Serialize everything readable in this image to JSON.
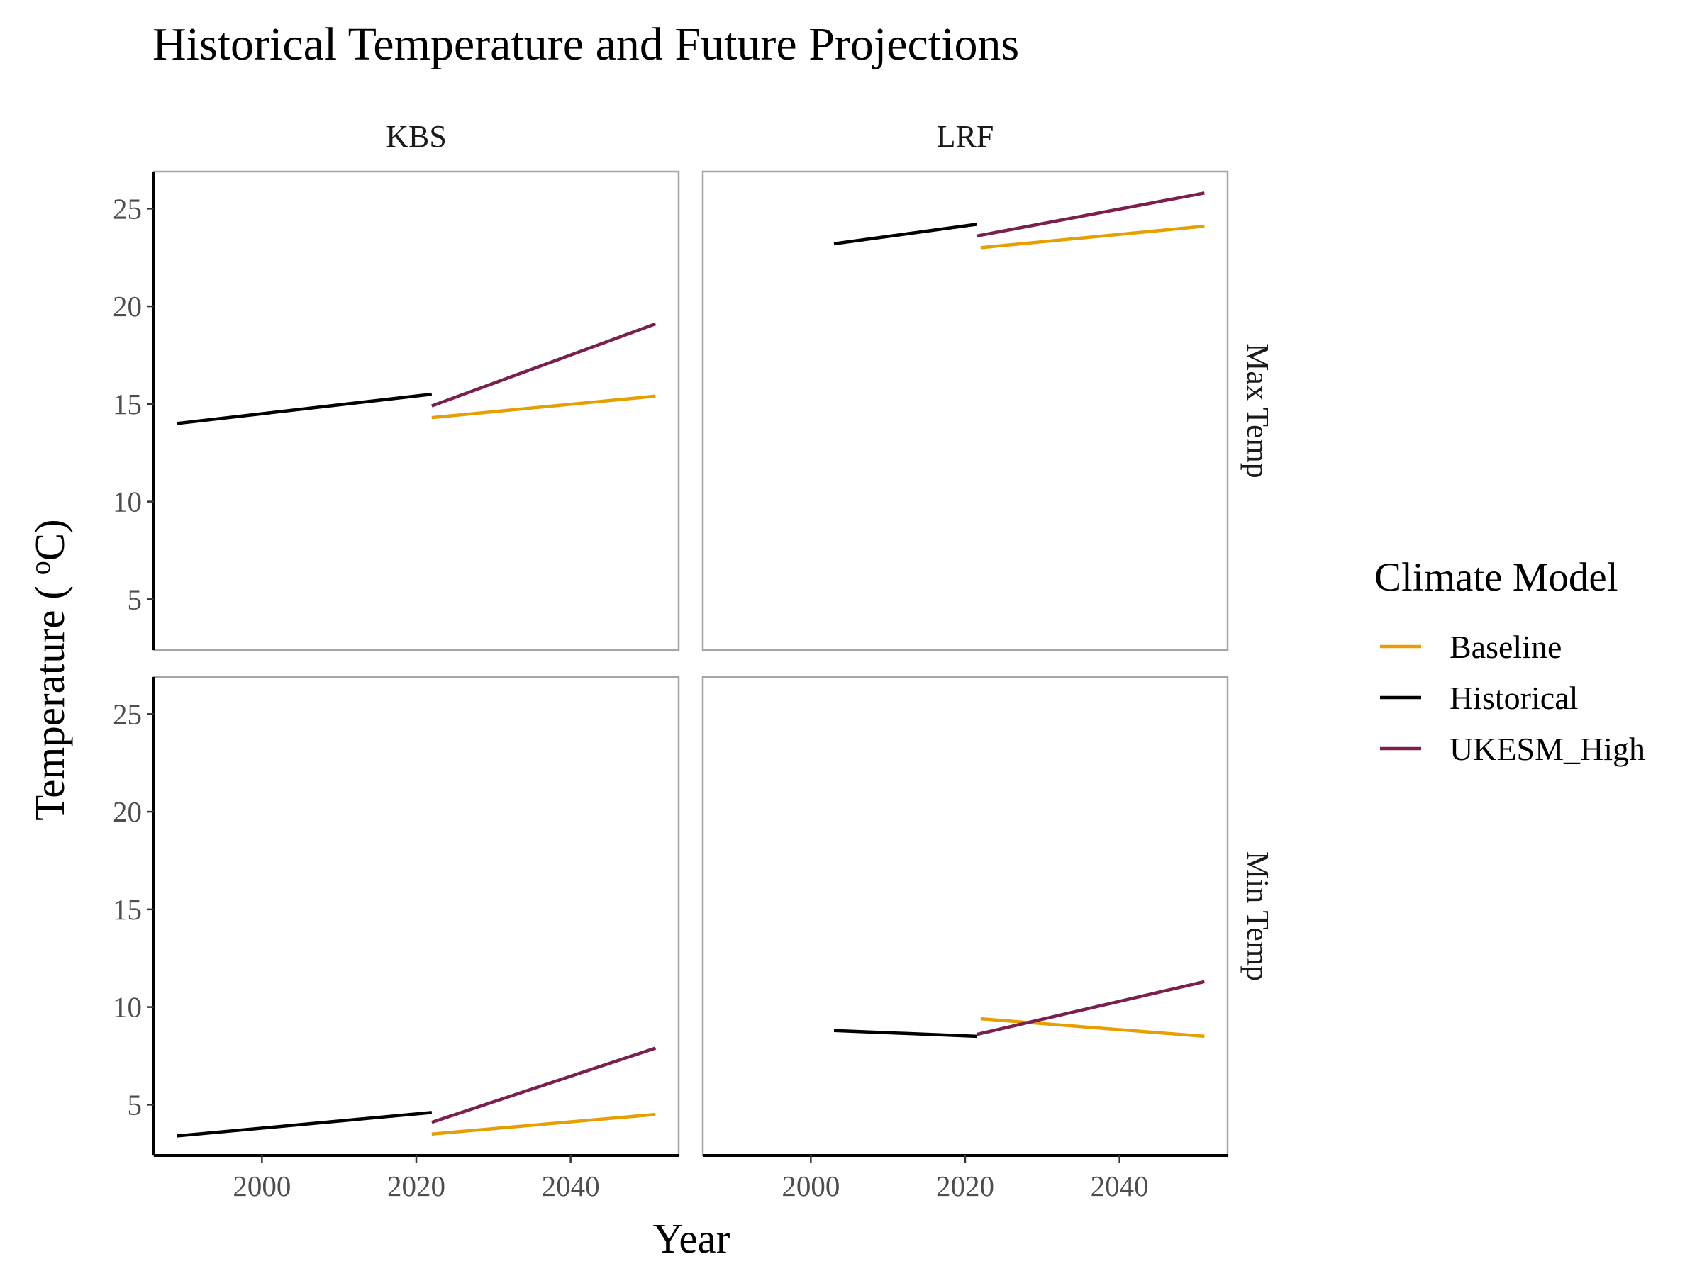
{
  "chart_data": {
    "type": "line",
    "title": "Historical Temperature and Future Projections",
    "xlabel": "Year",
    "ylabel": "Temperature ( °C)",
    "ylabel_parts": {
      "before": "Temperature ( ",
      "superscript": "o",
      "after": "C)"
    },
    "xlim": [
      1986,
      2054
    ],
    "ylim": [
      2.4,
      26.9
    ],
    "x_ticks": [
      2000,
      2020,
      2040
    ],
    "y_ticks": [
      5,
      10,
      15,
      20,
      25
    ],
    "facet_columns": [
      "KBS",
      "LRF"
    ],
    "facet_rows": [
      "Max Temp",
      "Min Temp"
    ],
    "legend": {
      "title": "Climate Model",
      "position": "right",
      "entries": [
        {
          "name": "Baseline",
          "color": "#E69F00"
        },
        {
          "name": "Historical",
          "color": "#000000"
        },
        {
          "name": "UKESM_High",
          "color": "#7B1F4E"
        }
      ]
    },
    "panels": [
      {
        "column": "KBS",
        "row": "Max Temp",
        "series": [
          {
            "name": "Historical",
            "x": [
              1989,
              2022
            ],
            "y": [
              14.0,
              15.5
            ]
          },
          {
            "name": "Baseline",
            "x": [
              2022,
              2051
            ],
            "y": [
              14.3,
              15.4
            ]
          },
          {
            "name": "UKESM_High",
            "x": [
              2022,
              2051
            ],
            "y": [
              14.9,
              19.1
            ]
          }
        ]
      },
      {
        "column": "LRF",
        "row": "Max Temp",
        "series": [
          {
            "name": "Historical",
            "x": [
              2003,
              2021.5
            ],
            "y": [
              23.2,
              24.2
            ]
          },
          {
            "name": "Baseline",
            "x": [
              2022,
              2051
            ],
            "y": [
              23.0,
              24.1
            ]
          },
          {
            "name": "UKESM_High",
            "x": [
              2021.5,
              2051
            ],
            "y": [
              23.6,
              25.8
            ]
          }
        ]
      },
      {
        "column": "KBS",
        "row": "Min Temp",
        "series": [
          {
            "name": "Historical",
            "x": [
              1989,
              2022
            ],
            "y": [
              3.4,
              4.6
            ]
          },
          {
            "name": "Baseline",
            "x": [
              2022,
              2051
            ],
            "y": [
              3.5,
              4.5
            ]
          },
          {
            "name": "UKESM_High",
            "x": [
              2022,
              2051
            ],
            "y": [
              4.1,
              7.9
            ]
          }
        ]
      },
      {
        "column": "LRF",
        "row": "Min Temp",
        "series": [
          {
            "name": "Historical",
            "x": [
              2003,
              2021.5
            ],
            "y": [
              8.8,
              8.5
            ]
          },
          {
            "name": "Baseline",
            "x": [
              2022,
              2051
            ],
            "y": [
              9.4,
              8.5
            ]
          },
          {
            "name": "UKESM_High",
            "x": [
              2021.5,
              2051
            ],
            "y": [
              8.6,
              11.3
            ]
          }
        ]
      }
    ]
  }
}
